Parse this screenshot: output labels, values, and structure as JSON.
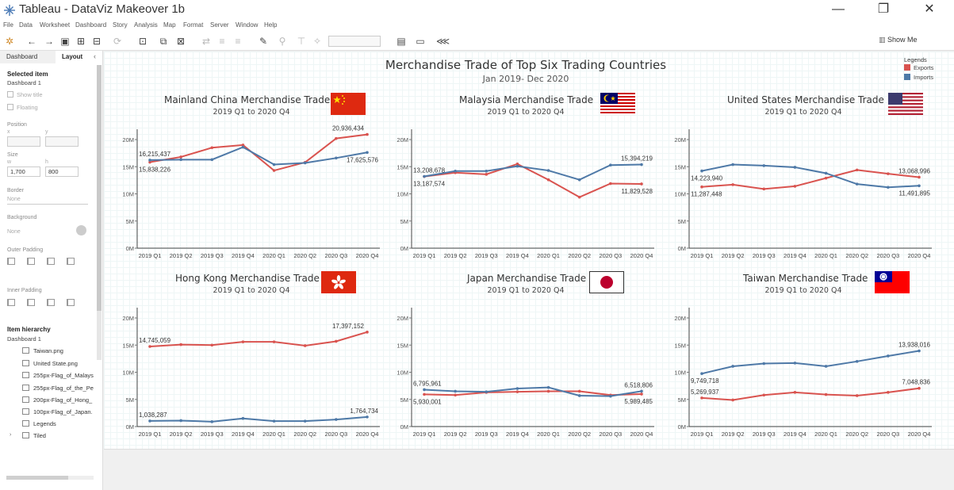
{
  "window": {
    "title": "Tableau - DataViz Makeover 1b",
    "controls": [
      "—",
      "❐",
      "✕"
    ]
  },
  "menu": [
    "File",
    "Data",
    "Worksheet",
    "Dashboard",
    "Story",
    "Analysis",
    "Map",
    "Format",
    "Server",
    "Window",
    "Help"
  ],
  "toolbar": {
    "show_me": "Show Me"
  },
  "sidebar": {
    "tab_dashboard": "Dashboard",
    "tab_layout": "Layout",
    "selected_item_heading": "Selected item",
    "selected_item_value": "Dashboard 1",
    "show_title": "Show title",
    "floating": "Floating",
    "position_label": "Position",
    "x_label": "x",
    "y_label": "y",
    "size_label": "Size",
    "w_label": "w",
    "h_label": "h",
    "w_value": "1,700",
    "h_value": "800",
    "border_label": "Border",
    "border_value": "None",
    "background_label": "Background",
    "background_value": "None",
    "outer_padding_label": "Outer Padding",
    "inner_padding_label": "Inner Padding",
    "hierarchy_heading": "Item hierarchy",
    "hierarchy_root": "Dashboard 1",
    "hierarchy_items": [
      "Taiwan.png",
      "United State.png",
      "255px-Flag_of_Malays",
      "255px-Flag_of_the_Pe",
      "200px-Flag_of_Hong_",
      "100px-Flag_of_Japan.",
      "Legends",
      "Tiled"
    ]
  },
  "dashboard": {
    "title": "Merchandise Trade of Top Six Trading Countries",
    "subtitle": "Jan 2019- Dec 2020",
    "legend": {
      "title": "Legends",
      "items": [
        {
          "label": "Exports",
          "color": "#d9534f"
        },
        {
          "label": "Imports",
          "color": "#4e79a7"
        }
      ]
    }
  },
  "chart_data": [
    {
      "type": "line",
      "title": "Mainland China Merchandise Trade",
      "subtitle": "2019 Q1 to 2020 Q4",
      "flag": "china",
      "categories": [
        "2019 Q1",
        "2019 Q2",
        "2019 Q3",
        "2019 Q4",
        "2020 Q1",
        "2020 Q2",
        "2020 Q3",
        "2020 Q4"
      ],
      "yticks": [
        "0M",
        "5M",
        "10M",
        "15M",
        "20M"
      ],
      "ylim": [
        0,
        21900000
      ],
      "series": [
        {
          "name": "Exports",
          "color": "#d9534f",
          "values": [
            15838226,
            16800000,
            18500000,
            19000000,
            14300000,
            15800000,
            20200000,
            20936434
          ],
          "labels": [
            {
              "i": 0,
              "text": "15,838,226",
              "pos": "below"
            },
            {
              "i": 7,
              "text": "20,936,434",
              "pos": "above-left"
            }
          ]
        },
        {
          "name": "Imports",
          "color": "#4e79a7",
          "values": [
            16215437,
            16300000,
            16300000,
            18600000,
            15400000,
            15700000,
            16600000,
            17625576
          ],
          "labels": [
            {
              "i": 0,
              "text": "16,215,437",
              "pos": "above"
            },
            {
              "i": 7,
              "text": "17,625,576",
              "pos": "below"
            }
          ]
        }
      ]
    },
    {
      "type": "line",
      "title": "Malaysia Merchandise Trade",
      "subtitle": "2019 Q1 to 2020 Q4",
      "flag": "malaysia",
      "categories": [
        "2019 Q1",
        "2019 Q2",
        "2019 Q3",
        "2019 Q4",
        "2020 Q1",
        "2020 Q2",
        "2020 Q3",
        "2020 Q4"
      ],
      "yticks": [
        "0M",
        "5M",
        "10M",
        "15M",
        "20M"
      ],
      "ylim": [
        0,
        21900000
      ],
      "series": [
        {
          "name": "Exports",
          "color": "#d9534f",
          "values": [
            13187574,
            13900000,
            13600000,
            15500000,
            12600000,
            9400000,
            11900000,
            11829528
          ],
          "labels": [
            {
              "i": 0,
              "text": "13,187,574",
              "pos": "below"
            },
            {
              "i": 7,
              "text": "11,829,528",
              "pos": "below"
            }
          ]
        },
        {
          "name": "Imports",
          "color": "#4e79a7",
          "values": [
            13208678,
            14200000,
            14200000,
            15100000,
            14300000,
            12600000,
            15300000,
            15394219
          ],
          "labels": [
            {
              "i": 0,
              "text": "13,208,678",
              "pos": "above"
            },
            {
              "i": 7,
              "text": "15,394,219",
              "pos": "above"
            }
          ]
        }
      ]
    },
    {
      "type": "line",
      "title": "United States Merchandise Trade",
      "subtitle": "2019 Q1 to 2020 Q4",
      "flag": "usa",
      "categories": [
        "2019 Q1",
        "2019 Q2",
        "2019 Q3",
        "2019 Q4",
        "2020 Q1",
        "2020 Q2",
        "2020 Q3",
        "2020 Q4"
      ],
      "yticks": [
        "0M",
        "5M",
        "10M",
        "15M",
        "20M"
      ],
      "ylim": [
        0,
        21900000
      ],
      "series": [
        {
          "name": "Exports",
          "color": "#d9534f",
          "values": [
            11287448,
            11700000,
            10900000,
            11400000,
            12900000,
            14400000,
            13700000,
            13068996
          ],
          "labels": [
            {
              "i": 0,
              "text": "11,287,448",
              "pos": "below"
            },
            {
              "i": 7,
              "text": "13,068,996",
              "pos": "above"
            }
          ]
        },
        {
          "name": "Imports",
          "color": "#4e79a7",
          "values": [
            14223940,
            15400000,
            15200000,
            14900000,
            13800000,
            11800000,
            11200000,
            11491895
          ],
          "labels": [
            {
              "i": 0,
              "text": "14,223,940",
              "pos": "below"
            },
            {
              "i": 7,
              "text": "11,491,895",
              "pos": "below"
            }
          ]
        }
      ]
    },
    {
      "type": "line",
      "title": "Hong Kong Merchandise Trade",
      "subtitle": "2019 Q1 to 2020 Q4",
      "flag": "hongkong",
      "categories": [
        "2019 Q1",
        "2019 Q2",
        "2019 Q3",
        "2019 Q4",
        "2020 Q1",
        "2020 Q2",
        "2020 Q3",
        "2020 Q4"
      ],
      "yticks": [
        "0M",
        "5M",
        "10M",
        "15M",
        "20M"
      ],
      "ylim": [
        0,
        21900000
      ],
      "series": [
        {
          "name": "Exports",
          "color": "#d9534f",
          "values": [
            14745059,
            15100000,
            15000000,
            15600000,
            15600000,
            14900000,
            15700000,
            17397152
          ],
          "labels": [
            {
              "i": 0,
              "text": "14,745,059",
              "pos": "above"
            },
            {
              "i": 7,
              "text": "17,397,152",
              "pos": "above-left"
            }
          ]
        },
        {
          "name": "Imports",
          "color": "#4e79a7",
          "values": [
            1038287,
            1100000,
            900000,
            1500000,
            1000000,
            1000000,
            1300000,
            1764734
          ],
          "labels": [
            {
              "i": 0,
              "text": "1,038,287",
              "pos": "above"
            },
            {
              "i": 7,
              "text": "1,764,734",
              "pos": "above"
            }
          ]
        }
      ]
    },
    {
      "type": "line",
      "title": "Japan Merchandise Trade",
      "subtitle": "2019 Q1 to 2020 Q4",
      "flag": "japan",
      "categories": [
        "2019 Q1",
        "2019 Q2",
        "2019 Q3",
        "2019 Q4",
        "2020 Q1",
        "2020 Q2",
        "2020 Q3",
        "2020 Q4"
      ],
      "yticks": [
        "0M",
        "5M",
        "10M",
        "15M",
        "20M"
      ],
      "ylim": [
        0,
        21900000
      ],
      "series": [
        {
          "name": "Exports",
          "color": "#d9534f",
          "values": [
            5930001,
            5800000,
            6300000,
            6400000,
            6500000,
            6500000,
            5800000,
            5989485
          ],
          "labels": [
            {
              "i": 0,
              "text": "5,930,001",
              "pos": "below"
            },
            {
              "i": 7,
              "text": "5,989,485",
              "pos": "below"
            }
          ]
        },
        {
          "name": "Imports",
          "color": "#4e79a7",
          "values": [
            6795961,
            6500000,
            6400000,
            7000000,
            7200000,
            5700000,
            5600000,
            6518806
          ],
          "labels": [
            {
              "i": 0,
              "text": "6,795,961",
              "pos": "above"
            },
            {
              "i": 7,
              "text": "6,518,806",
              "pos": "above"
            }
          ]
        }
      ]
    },
    {
      "type": "line",
      "title": "Taiwan Merchandise Trade",
      "subtitle": "2019 Q1 to 2020 Q4",
      "flag": "taiwan",
      "categories": [
        "2019 Q1",
        "2019 Q2",
        "2019 Q3",
        "2019 Q4",
        "2020 Q1",
        "2020 Q2",
        "2020 Q3",
        "2020 Q4"
      ],
      "yticks": [
        "0M",
        "5M",
        "10M",
        "15M",
        "20M"
      ],
      "ylim": [
        0,
        21900000
      ],
      "series": [
        {
          "name": "Exports",
          "color": "#d9534f",
          "values": [
            5269937,
            4900000,
            5800000,
            6300000,
            5900000,
            5700000,
            6300000,
            7048836
          ],
          "labels": [
            {
              "i": 0,
              "text": "5,269,937",
              "pos": "above"
            },
            {
              "i": 7,
              "text": "7,048,836",
              "pos": "above"
            }
          ]
        },
        {
          "name": "Imports",
          "color": "#4e79a7",
          "values": [
            9749718,
            11100000,
            11600000,
            11700000,
            11100000,
            12000000,
            13000000,
            13938016
          ],
          "labels": [
            {
              "i": 0,
              "text": "9,749,718",
              "pos": "below"
            },
            {
              "i": 7,
              "text": "13,938,016",
              "pos": "above"
            }
          ]
        }
      ]
    }
  ]
}
